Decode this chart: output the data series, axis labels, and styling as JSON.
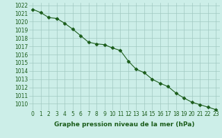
{
  "x": [
    0,
    1,
    2,
    3,
    4,
    5,
    6,
    7,
    8,
    9,
    10,
    11,
    12,
    13,
    14,
    15,
    16,
    17,
    18,
    19,
    20,
    21,
    22,
    23
  ],
  "y": [
    1021.5,
    1021.1,
    1020.5,
    1020.4,
    1019.8,
    1019.1,
    1018.3,
    1017.5,
    1017.3,
    1017.2,
    1016.8,
    1016.5,
    1015.2,
    1014.2,
    1013.8,
    1013.0,
    1012.5,
    1012.1,
    1011.3,
    1010.7,
    1010.2,
    1009.9,
    1009.6,
    1009.3
  ],
  "line_color": "#1a5c1a",
  "marker": "D",
  "marker_size": 2.5,
  "bg_color": "#cceee8",
  "grid_color": "#a0c8c0",
  "ylabel_ticks": [
    1010,
    1011,
    1012,
    1013,
    1014,
    1015,
    1016,
    1017,
    1018,
    1019,
    1020,
    1021,
    1022
  ],
  "ylim": [
    1009.2,
    1022.3
  ],
  "xlim": [
    -0.5,
    23.5
  ],
  "xlabel": "Graphe pression niveau de la mer (hPa)",
  "title_color": "#1a5c1a",
  "tick_fontsize": 5.5,
  "label_fontsize": 6.5
}
